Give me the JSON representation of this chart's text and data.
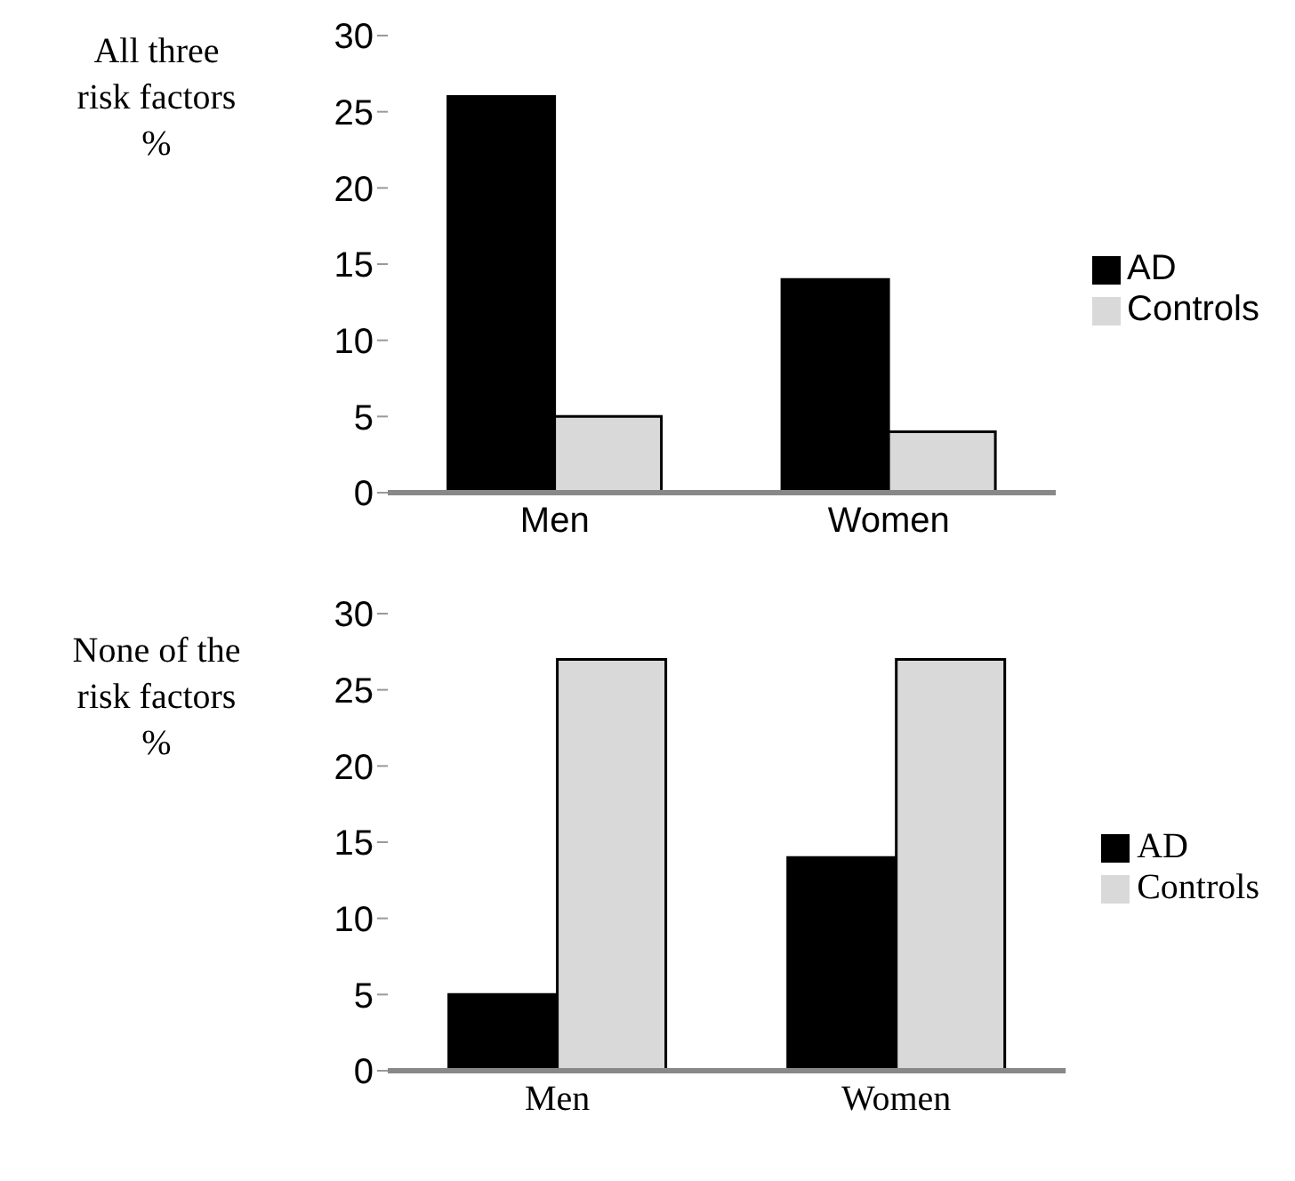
{
  "chart_data": [
    {
      "type": "bar",
      "ylabel": "All three\nrisk factors\n%",
      "categories": [
        "Men",
        "Women"
      ],
      "series": [
        {
          "name": "AD",
          "color": "#000000",
          "values": [
            26,
            14
          ]
        },
        {
          "name": "Controls",
          "color": "#d9d9d9",
          "values": [
            5,
            4
          ]
        }
      ],
      "ylim": [
        0,
        30
      ],
      "yticks": [
        0,
        5,
        10,
        15,
        20,
        25,
        30
      ],
      "grid": false,
      "legend": "right"
    },
    {
      "type": "bar",
      "ylabel": "None of the\nrisk factors\n%",
      "categories": [
        "Men",
        "Women"
      ],
      "series": [
        {
          "name": "AD",
          "color": "#000000",
          "values": [
            5,
            14
          ]
        },
        {
          "name": "Controls",
          "color": "#d9d9d9",
          "values": [
            27,
            27
          ]
        }
      ],
      "ylim": [
        0,
        30
      ],
      "yticks": [
        0,
        5,
        10,
        15,
        20,
        25,
        30
      ],
      "grid": false,
      "legend": "right"
    }
  ]
}
